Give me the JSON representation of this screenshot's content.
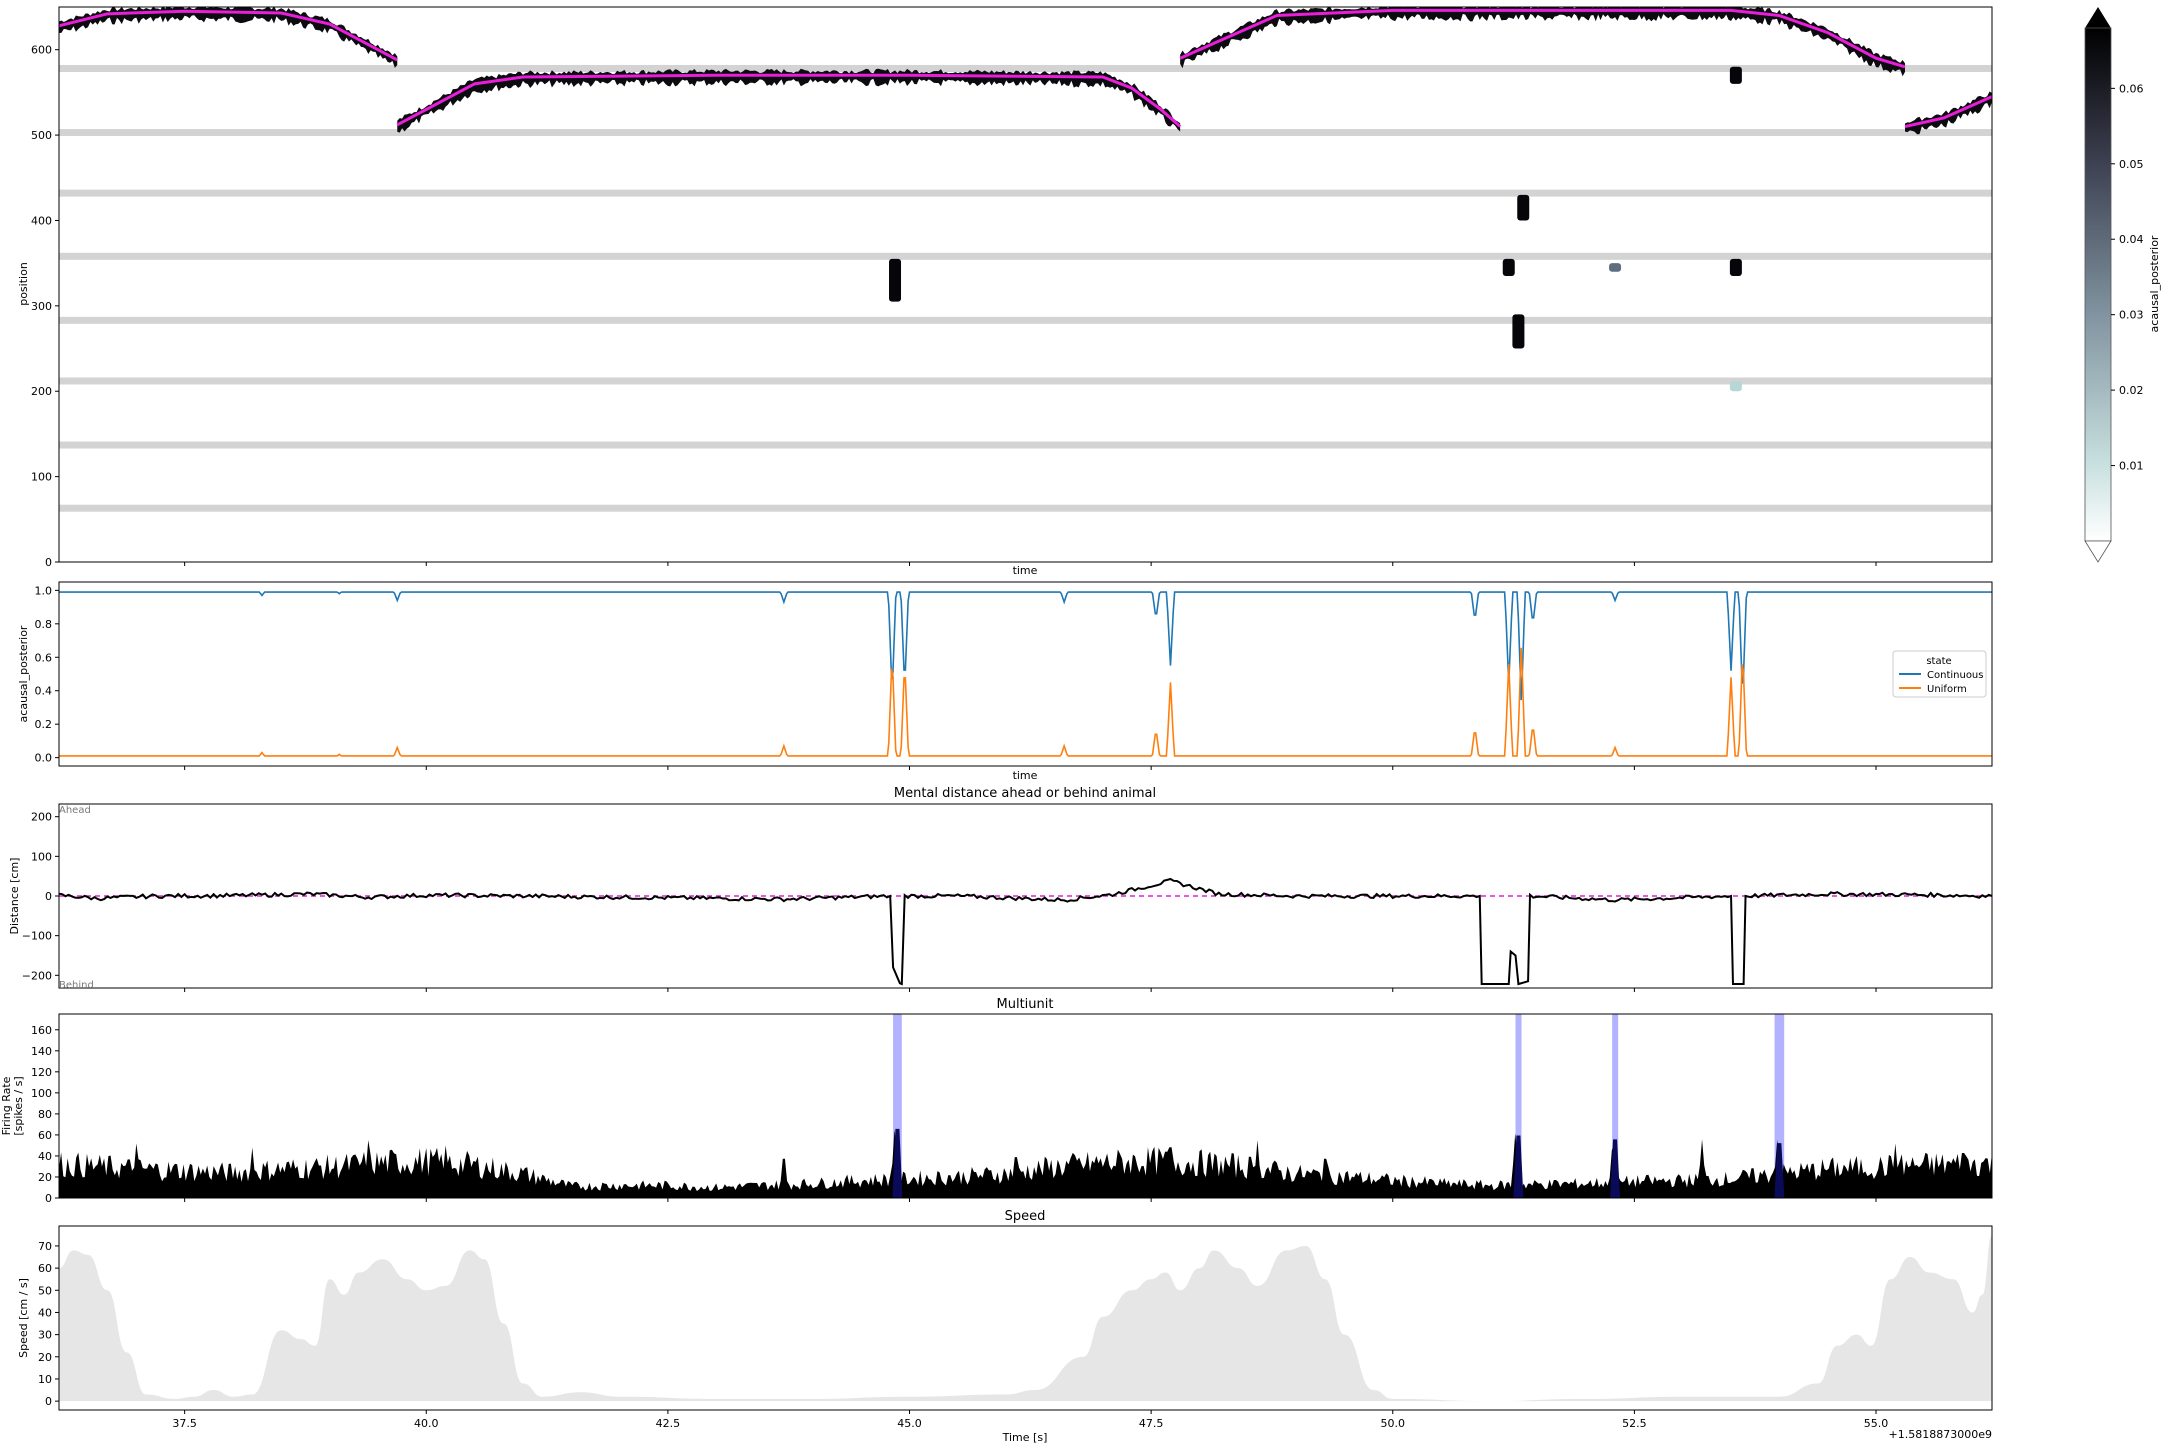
{
  "figure": {
    "x_offset_label": "+1.5818873000e9"
  },
  "colorbar": {
    "label": "acausal_posterior",
    "ticks": [
      "0.01",
      "0.02",
      "0.03",
      "0.04",
      "0.05",
      "0.06"
    ],
    "tick_values": [
      0.01,
      0.02,
      0.03,
      0.04,
      0.05,
      0.06
    ],
    "vmin": 0.0,
    "vmax": 0.068
  },
  "chart_data": [
    {
      "type": "heatmap",
      "title": "",
      "xlabel": "time",
      "ylabel": "position",
      "xlim": [
        36.2,
        56.2
      ],
      "ylim": [
        0,
        650
      ],
      "y_ticks": [
        "0",
        "100",
        "200",
        "300",
        "400",
        "500",
        "600"
      ],
      "y_tick_values": [
        0,
        100,
        200,
        300,
        400,
        500,
        600
      ],
      "gap_bands_position": [
        63,
        137,
        212,
        283,
        358,
        432,
        503,
        578
      ],
      "actual_position_color": "#e81ed8",
      "actual_position": [
        [
          36.2,
          628
        ],
        [
          36.7,
          642
        ],
        [
          37.5,
          645
        ],
        [
          38.5,
          643
        ],
        [
          39.0,
          630
        ],
        [
          39.5,
          600
        ],
        [
          39.7,
          588
        ],
        [
          39.7,
          512
        ],
        [
          40.0,
          530
        ],
        [
          40.5,
          560
        ],
        [
          41.0,
          568
        ],
        [
          43.0,
          570
        ],
        [
          45.0,
          570
        ],
        [
          47.0,
          568
        ],
        [
          47.3,
          555
        ],
        [
          47.6,
          530
        ],
        [
          47.8,
          510
        ],
        [
          47.8,
          590
        ],
        [
          48.2,
          610
        ],
        [
          48.8,
          640
        ],
        [
          50.0,
          646
        ],
        [
          52.0,
          646
        ],
        [
          53.5,
          646
        ],
        [
          54.0,
          640
        ],
        [
          54.5,
          620
        ],
        [
          55.0,
          590
        ],
        [
          55.3,
          580
        ],
        [
          55.3,
          510
        ],
        [
          55.7,
          520
        ],
        [
          56.2,
          545
        ]
      ],
      "posterior_blobs": [
        {
          "t": 44.85,
          "p0": 305,
          "p1": 355,
          "value": 0.068
        },
        {
          "t": 51.2,
          "p0": 335,
          "p1": 355,
          "value": 0.068
        },
        {
          "t": 51.35,
          "p0": 400,
          "p1": 430,
          "value": 0.068
        },
        {
          "t": 51.3,
          "p0": 250,
          "p1": 290,
          "value": 0.068
        },
        {
          "t": 52.3,
          "p0": 340,
          "p1": 350,
          "value": 0.035
        },
        {
          "t": 53.55,
          "p0": 335,
          "p1": 355,
          "value": 0.068
        },
        {
          "t": 53.55,
          "p0": 560,
          "p1": 580,
          "value": 0.068
        },
        {
          "t": 53.55,
          "p0": 200,
          "p1": 212,
          "value": 0.015
        }
      ]
    },
    {
      "type": "line",
      "title": "",
      "xlabel": "time",
      "ylabel": "acausal_posterior",
      "xlim": [
        36.2,
        56.2
      ],
      "ylim": [
        -0.05,
        1.05
      ],
      "y_ticks": [
        "0.0",
        "0.2",
        "0.4",
        "0.6",
        "0.8",
        "1.0"
      ],
      "y_tick_values": [
        0.0,
        0.2,
        0.4,
        0.6,
        0.8,
        1.0
      ],
      "legend": {
        "title": "state",
        "placement": "right"
      },
      "series": [
        {
          "name": "Continuous",
          "color": "#1f77b4",
          "baseline": 0.99
        },
        {
          "name": "Uniform",
          "color": "#ff7f0e",
          "baseline": 0.01
        }
      ],
      "events": [
        [
          38.3,
          0.03
        ],
        [
          39.1,
          0.02
        ],
        [
          39.7,
          0.06
        ],
        [
          43.7,
          0.07
        ],
        [
          44.82,
          0.62
        ],
        [
          44.95,
          0.58
        ],
        [
          46.6,
          0.07
        ],
        [
          47.55,
          0.17
        ],
        [
          47.7,
          0.45
        ],
        [
          50.85,
          0.18
        ],
        [
          51.2,
          0.56
        ],
        [
          51.33,
          0.68
        ],
        [
          51.45,
          0.2
        ],
        [
          52.3,
          0.06
        ],
        [
          53.5,
          0.48
        ],
        [
          53.62,
          0.65
        ]
      ]
    },
    {
      "type": "line",
      "title": "Mental distance ahead or behind animal",
      "xlabel": "",
      "ylabel": "Distance [cm]",
      "xlim": [
        36.2,
        56.2
      ],
      "ylim": [
        -232,
        232
      ],
      "y_ticks": [
        "−200",
        "−100",
        "0",
        "100",
        "200"
      ],
      "y_tick_values": [
        -200,
        -100,
        0,
        100,
        200
      ],
      "annotations": {
        "ahead": "Ahead",
        "behind": "Behind"
      },
      "line_color": "#000000",
      "reference_color": "#e81ed8",
      "points": [
        [
          36.2,
          2
        ],
        [
          36.6,
          -6
        ],
        [
          37.2,
          0
        ],
        [
          38.0,
          1
        ],
        [
          38.8,
          5
        ],
        [
          39.4,
          -3
        ],
        [
          40.0,
          2
        ],
        [
          41.0,
          0
        ],
        [
          43.7,
          -8
        ],
        [
          44.8,
          0
        ],
        [
          44.83,
          -180
        ],
        [
          44.9,
          -220
        ],
        [
          44.92,
          -222
        ],
        [
          44.95,
          0
        ],
        [
          45.5,
          0
        ],
        [
          46.6,
          -10
        ],
        [
          47.1,
          4
        ],
        [
          47.7,
          38
        ],
        [
          48.2,
          5
        ],
        [
          49.0,
          0
        ],
        [
          50.9,
          0
        ],
        [
          50.92,
          -222
        ],
        [
          51.2,
          -222
        ],
        [
          51.22,
          -140
        ],
        [
          51.27,
          -150
        ],
        [
          51.3,
          -222
        ],
        [
          51.4,
          -215
        ],
        [
          51.42,
          0
        ],
        [
          52.3,
          -10
        ],
        [
          53.5,
          0
        ],
        [
          53.52,
          -222
        ],
        [
          53.63,
          -222
        ],
        [
          53.65,
          0
        ],
        [
          54.5,
          5
        ],
        [
          55.5,
          3
        ],
        [
          56.2,
          0
        ]
      ]
    },
    {
      "type": "area",
      "title": "Multiunit",
      "xlabel": "",
      "ylabel": "Firing Rate [spikes / s]",
      "ylabel_lines": [
        "Firing Rate",
        "[spikes / s]"
      ],
      "xlim": [
        36.2,
        56.2
      ],
      "ylim": [
        0,
        175
      ],
      "y_ticks": [
        "0",
        "20",
        "40",
        "60",
        "80",
        "100",
        "120",
        "140",
        "160"
      ],
      "y_tick_values": [
        0,
        20,
        40,
        60,
        80,
        100,
        120,
        140,
        160
      ],
      "fill_color": "#000000",
      "highlight_color": "#0000ff",
      "highlight_spans": [
        [
          44.83,
          44.92
        ],
        [
          51.27,
          51.33
        ],
        [
          52.27,
          52.33
        ],
        [
          53.95,
          54.05
        ]
      ],
      "envelope": [
        [
          36.2,
          35
        ],
        [
          37.0,
          30
        ],
        [
          37.5,
          28
        ],
        [
          38.0,
          26
        ],
        [
          38.5,
          30
        ],
        [
          39.0,
          32
        ],
        [
          39.5,
          36
        ],
        [
          40.0,
          38
        ],
        [
          40.5,
          34
        ],
        [
          41.0,
          25
        ],
        [
          41.5,
          12
        ],
        [
          42.0,
          13
        ],
        [
          42.5,
          13
        ],
        [
          43.0,
          11
        ],
        [
          43.5,
          13
        ],
        [
          44.0,
          15
        ],
        [
          44.5,
          18
        ],
        [
          45.0,
          20
        ],
        [
          45.5,
          22
        ],
        [
          46.0,
          25
        ],
        [
          46.5,
          32
        ],
        [
          47.0,
          36
        ],
        [
          47.5,
          38
        ],
        [
          48.0,
          36
        ],
        [
          48.5,
          32
        ],
        [
          49.0,
          25
        ],
        [
          49.5,
          22
        ],
        [
          50.0,
          18
        ],
        [
          50.5,
          15
        ],
        [
          51.0,
          13
        ],
        [
          51.5,
          14
        ],
        [
          52.0,
          15
        ],
        [
          52.5,
          17
        ],
        [
          53.0,
          18
        ],
        [
          53.5,
          20
        ],
        [
          54.0,
          25
        ],
        [
          54.5,
          30
        ],
        [
          55.0,
          32
        ],
        [
          55.5,
          34
        ],
        [
          56.2,
          36
        ]
      ],
      "peaks": [
        [
          37.0,
          52
        ],
        [
          38.2,
          48
        ],
        [
          39.4,
          55
        ],
        [
          40.2,
          50
        ],
        [
          43.7,
          48
        ],
        [
          44.85,
          73
        ],
        [
          46.1,
          50
        ],
        [
          47.7,
          62
        ],
        [
          48.6,
          55
        ],
        [
          49.3,
          48
        ],
        [
          51.27,
          66
        ],
        [
          52.28,
          62
        ],
        [
          53.2,
          56
        ],
        [
          53.98,
          58
        ],
        [
          55.2,
          52
        ],
        [
          55.9,
          55
        ]
      ]
    },
    {
      "type": "area",
      "title": "Speed",
      "xlabel": "Time [s]",
      "ylabel": "Speed [cm / s]",
      "xlim": [
        36.2,
        56.2
      ],
      "ylim": [
        -4,
        79
      ],
      "y_ticks": [
        "0",
        "10",
        "20",
        "30",
        "40",
        "50",
        "60",
        "70"
      ],
      "y_tick_values": [
        0,
        10,
        20,
        30,
        40,
        50,
        60,
        70
      ],
      "x_ticks": [
        "37.5",
        "40.0",
        "42.5",
        "45.0",
        "47.5",
        "50.0",
        "52.5",
        "55.0"
      ],
      "x_tick_values": [
        37.5,
        40.0,
        42.5,
        45.0,
        47.5,
        50.0,
        52.5,
        55.0
      ],
      "fill_color": "#e6e6e6",
      "points": [
        [
          36.2,
          60
        ],
        [
          36.35,
          68
        ],
        [
          36.5,
          66
        ],
        [
          36.7,
          50
        ],
        [
          36.9,
          22
        ],
        [
          37.1,
          3
        ],
        [
          37.4,
          1
        ],
        [
          37.6,
          2
        ],
        [
          37.8,
          5
        ],
        [
          38.0,
          2
        ],
        [
          38.2,
          3
        ],
        [
          38.5,
          32
        ],
        [
          38.7,
          28
        ],
        [
          38.85,
          25
        ],
        [
          39.0,
          55
        ],
        [
          39.15,
          48
        ],
        [
          39.3,
          58
        ],
        [
          39.55,
          64
        ],
        [
          39.8,
          55
        ],
        [
          40.0,
          50
        ],
        [
          40.2,
          52
        ],
        [
          40.45,
          68
        ],
        [
          40.6,
          64
        ],
        [
          40.8,
          35
        ],
        [
          41.0,
          8
        ],
        [
          41.2,
          2
        ],
        [
          41.6,
          4
        ],
        [
          42.0,
          2
        ],
        [
          43.0,
          1
        ],
        [
          44.0,
          1
        ],
        [
          45.0,
          2
        ],
        [
          46.0,
          3
        ],
        [
          46.3,
          5
        ],
        [
          46.8,
          20
        ],
        [
          47.0,
          38
        ],
        [
          47.3,
          50
        ],
        [
          47.5,
          55
        ],
        [
          47.65,
          58
        ],
        [
          47.8,
          50
        ],
        [
          48.0,
          60
        ],
        [
          48.15,
          68
        ],
        [
          48.4,
          60
        ],
        [
          48.6,
          52
        ],
        [
          48.9,
          68
        ],
        [
          49.1,
          70
        ],
        [
          49.3,
          55
        ],
        [
          49.5,
          30
        ],
        [
          49.8,
          5
        ],
        [
          50.0,
          1
        ],
        [
          51.0,
          0
        ],
        [
          52.0,
          1
        ],
        [
          53.0,
          2
        ],
        [
          54.0,
          2
        ],
        [
          54.4,
          8
        ],
        [
          54.6,
          25
        ],
        [
          54.8,
          30
        ],
        [
          54.95,
          25
        ],
        [
          55.15,
          55
        ],
        [
          55.35,
          65
        ],
        [
          55.55,
          58
        ],
        [
          55.8,
          55
        ],
        [
          56.0,
          40
        ],
        [
          56.1,
          48
        ],
        [
          56.2,
          75
        ]
      ]
    }
  ]
}
